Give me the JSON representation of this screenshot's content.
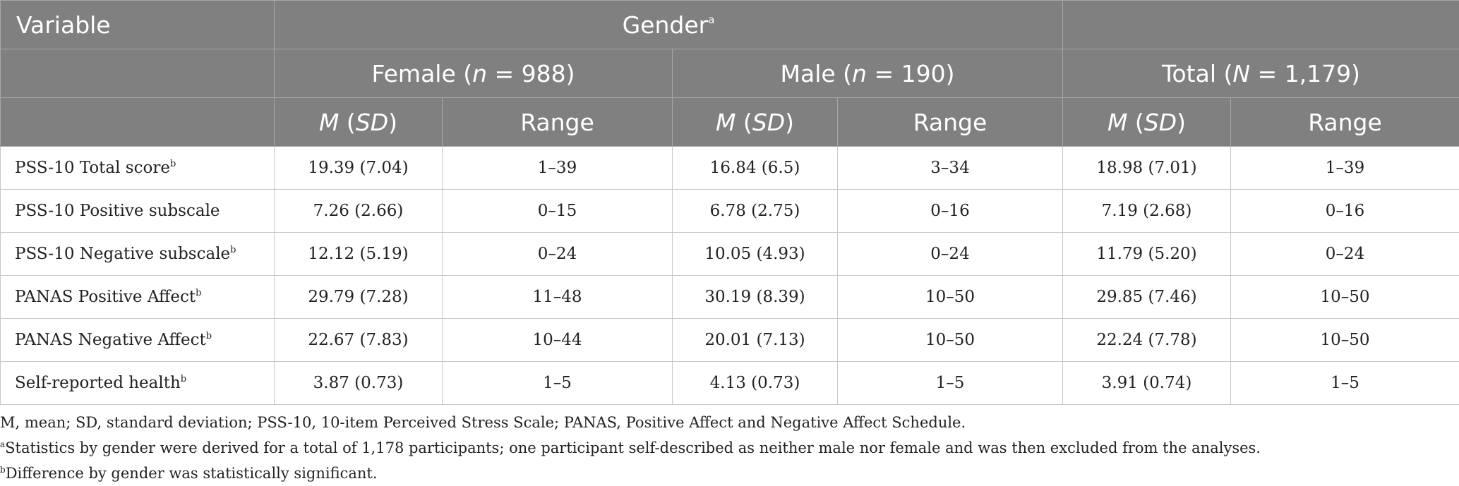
{
  "header": {
    "variable": "Variable",
    "gender": "Gender",
    "gender_note": "a",
    "groups": [
      {
        "prefix": "Female (",
        "n_symbol": "n",
        "n_text": " = 988)"
      },
      {
        "prefix": "Male (",
        "n_symbol": "n",
        "n_text": " = 190)"
      },
      {
        "prefix": "Total (",
        "n_symbol": "N",
        "n_text": " = 1,179)"
      }
    ],
    "subcols": {
      "m_symbol": "M",
      "sd_open": " (",
      "sd_symbol": "SD",
      "sd_close": ")",
      "range": "Range"
    }
  },
  "rows": [
    {
      "label": "PSS-10 Total score",
      "note": "b",
      "female_msd": "19.39 (7.04)",
      "female_range": "1–39",
      "male_msd": "16.84 (6.5)",
      "male_range": "3–34",
      "total_msd": "18.98 (7.01)",
      "total_range": "1–39"
    },
    {
      "label": "PSS-10 Positive subscale",
      "note": "",
      "female_msd": "7.26 (2.66)",
      "female_range": "0–15",
      "male_msd": "6.78 (2.75)",
      "male_range": "0–16",
      "total_msd": "7.19 (2.68)",
      "total_range": "0–16"
    },
    {
      "label": "PSS-10 Negative subscale",
      "note": "b",
      "female_msd": "12.12 (5.19)",
      "female_range": "0–24",
      "male_msd": "10.05 (4.93)",
      "male_range": "0–24",
      "total_msd": "11.79 (5.20)",
      "total_range": "0–24"
    },
    {
      "label": "PANAS Positive Affect",
      "note": "b",
      "female_msd": "29.79 (7.28)",
      "female_range": "11–48",
      "male_msd": "30.19 (8.39)",
      "male_range": "10–50",
      "total_msd": "29.85 (7.46)",
      "total_range": "10–50"
    },
    {
      "label": "PANAS Negative Affect",
      "note": "b",
      "female_msd": "22.67 (7.83)",
      "female_range": "10–44",
      "male_msd": "20.01 (7.13)",
      "male_range": "10–50",
      "total_msd": "22.24 (7.78)",
      "total_range": "10–50"
    },
    {
      "label": "Self-reported health",
      "note": "b",
      "female_msd": "3.87 (0.73)",
      "female_range": "1–5",
      "male_msd": "4.13 (0.73)",
      "male_range": "1–5",
      "total_msd": "3.91 (0.74)",
      "total_range": "1–5"
    }
  ],
  "footnotes": [
    {
      "mark": "",
      "text": "M, mean; SD, standard deviation; PSS-10, 10-item Perceived Stress Scale; PANAS, Positive Affect and Negative Affect Schedule."
    },
    {
      "mark": "a",
      "text": "Statistics by gender were derived for a total of 1,178 participants; one participant self-described as neither male nor female and was then excluded from the analyses."
    },
    {
      "mark": "b",
      "text": "Difference by gender was statistically significant."
    }
  ]
}
